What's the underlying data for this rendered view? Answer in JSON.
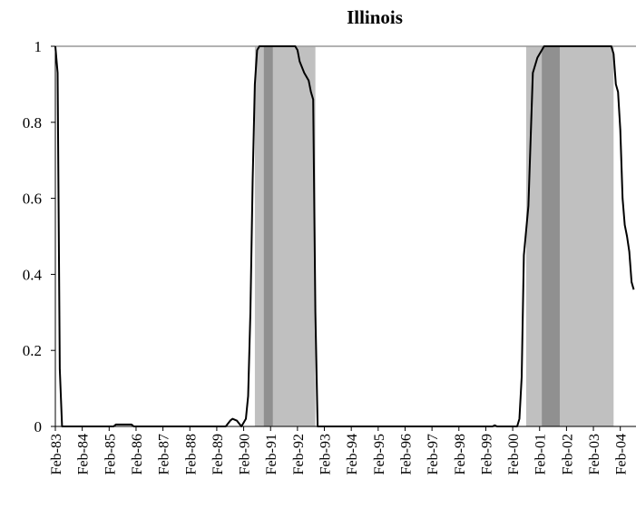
{
  "chart_data": {
    "type": "line",
    "title": "Illinois",
    "xlabel": "",
    "ylabel": "",
    "ylim": [
      0,
      1
    ],
    "y_ticks": [
      "0",
      "0.2",
      "0.4",
      "0.6",
      "0.8",
      "1"
    ],
    "x_ticks": [
      "Feb-83",
      "Feb-84",
      "Feb-85",
      "Feb-86",
      "Feb-87",
      "Feb-88",
      "Feb-89",
      "Feb-90",
      "Feb-91",
      "Feb-92",
      "Feb-93",
      "Feb-94",
      "Feb-95",
      "Feb-96",
      "Feb-97",
      "Feb-98",
      "Feb-99",
      "Feb-00",
      "Feb-01",
      "Feb-02",
      "Feb-03",
      "Feb-04"
    ],
    "x_range": [
      "1983-02",
      "2004-09"
    ],
    "grid": false,
    "legend": "none",
    "reference_line": {
      "y": 1,
      "color": "#999999"
    },
    "shaded_regions": [
      {
        "from": "1990-07",
        "to": "1992-10",
        "color": "#c0c0c0"
      },
      {
        "from": "1990-11",
        "to": "1991-03",
        "color": "#909090"
      },
      {
        "from": "2000-08",
        "to": "2003-11",
        "color": "#c0c0c0"
      },
      {
        "from": "2001-03",
        "to": "2001-11",
        "color": "#909090"
      }
    ],
    "series": [
      {
        "color": "#000000",
        "points": [
          [
            "1983-02",
            1.0
          ],
          [
            "1983-03",
            0.93
          ],
          [
            "1983-04",
            0.15
          ],
          [
            "1983-05",
            0.0
          ],
          [
            "1985-04",
            0.0
          ],
          [
            "1985-05",
            0.005
          ],
          [
            "1985-12",
            0.005
          ],
          [
            "1986-01",
            0.0
          ],
          [
            "1989-06",
            0.0
          ],
          [
            "1989-08",
            0.015
          ],
          [
            "1989-09",
            0.02
          ],
          [
            "1989-11",
            0.015
          ],
          [
            "1990-01",
            0.0
          ],
          [
            "1990-03",
            0.02
          ],
          [
            "1990-04",
            0.08
          ],
          [
            "1990-05",
            0.3
          ],
          [
            "1990-06",
            0.65
          ],
          [
            "1990-07",
            0.9
          ],
          [
            "1990-08",
            0.99
          ],
          [
            "1990-09",
            1.0
          ],
          [
            "1992-01",
            1.0
          ],
          [
            "1992-02",
            0.99
          ],
          [
            "1992-03",
            0.96
          ],
          [
            "1992-05",
            0.93
          ],
          [
            "1992-07",
            0.91
          ],
          [
            "1992-08",
            0.88
          ],
          [
            "1992-09",
            0.86
          ],
          [
            "1992-10",
            0.3
          ],
          [
            "1992-11",
            0.0
          ],
          [
            "1999-05",
            0.0
          ],
          [
            "1999-06",
            0.003
          ],
          [
            "1999-07",
            0.0
          ],
          [
            "2000-04",
            0.0
          ],
          [
            "2000-05",
            0.02
          ],
          [
            "2000-06",
            0.13
          ],
          [
            "2000-07",
            0.45
          ],
          [
            "2000-09",
            0.58
          ],
          [
            "2000-11",
            0.93
          ],
          [
            "2001-01",
            0.97
          ],
          [
            "2001-03",
            0.99
          ],
          [
            "2001-04",
            1.0
          ],
          [
            "2003-10",
            1.0
          ],
          [
            "2003-11",
            0.98
          ],
          [
            "2003-12",
            0.9
          ],
          [
            "2004-01",
            0.88
          ],
          [
            "2004-02",
            0.78
          ],
          [
            "2004-03",
            0.6
          ],
          [
            "2004-04",
            0.53
          ],
          [
            "2004-05",
            0.5
          ],
          [
            "2004-06",
            0.46
          ],
          [
            "2004-07",
            0.38
          ],
          [
            "2004-08",
            0.36
          ]
        ]
      }
    ]
  }
}
